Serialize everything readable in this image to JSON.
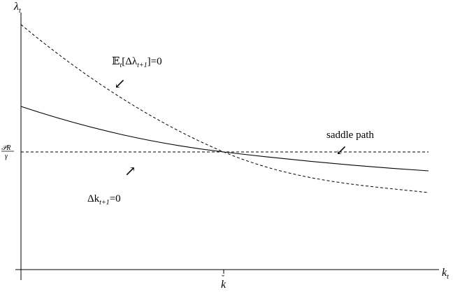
{
  "axes": {
    "y_label_main": "λ",
    "y_label_sub": "t",
    "x_label_main": "k",
    "x_label_sub": "t",
    "x_tick_main": "k",
    "x_tick_accent": "ˇ",
    "y_tick_num": "𝒫R",
    "y_tick_den": "γ"
  },
  "curves": {
    "lambda_locus": {
      "pre": "𝔼",
      "sub1": "t",
      "open": "[Δλ",
      "sub2": "t+1",
      "close": "]=0",
      "arrow": "↙"
    },
    "k_locus": {
      "pre": "Δk",
      "sub": "t+1",
      "post": "=0",
      "arrow": "↗"
    },
    "saddle_path": {
      "label": "saddle path",
      "arrow": "↙"
    }
  }
}
